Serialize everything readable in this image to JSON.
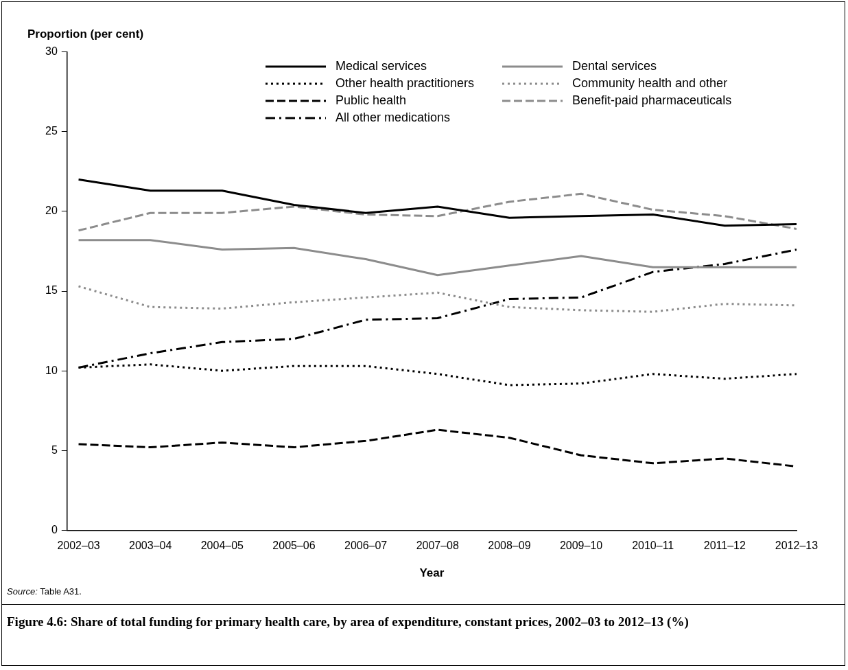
{
  "chart_data": {
    "type": "line",
    "title": "Figure 4.6: Share of total funding for primary health care, by area of expenditure, constant prices, 2002–03 to 2012–13 (%)",
    "ylabel": "Proportion (per cent)",
    "xlabel": "Year",
    "annotations": [
      "Source: Table A31."
    ],
    "categories": [
      "2002–03",
      "2003–04",
      "2004–05",
      "2005–06",
      "2006–07",
      "2007–08",
      "2008–09",
      "2009–10",
      "2010–11",
      "2011–12",
      "2012–13"
    ],
    "ylim": [
      0,
      30
    ],
    "yticks": [
      0,
      5,
      10,
      15,
      20,
      25,
      30
    ],
    "grid": false,
    "legend": "top",
    "marker": "none",
    "series": [
      {
        "name": "Medical services",
        "color": "#000000",
        "line_style": "solid",
        "values": [
          22.0,
          21.3,
          21.3,
          20.4,
          19.9,
          20.3,
          19.6,
          19.7,
          19.8,
          19.1,
          19.2
        ]
      },
      {
        "name": "Dental services",
        "color": "#8c8c8c",
        "line_style": "solid",
        "values": [
          18.2,
          18.2,
          17.6,
          17.7,
          17.0,
          16.0,
          16.6,
          17.2,
          16.5,
          16.5,
          16.5
        ]
      },
      {
        "name": "Other health practitioners",
        "color": "#000000",
        "line_style": "dotted",
        "values": [
          10.2,
          10.4,
          10.0,
          10.3,
          10.3,
          9.8,
          9.1,
          9.2,
          9.8,
          9.5,
          9.8
        ]
      },
      {
        "name": "Community health and other",
        "color": "#8c8c8c",
        "line_style": "dotted",
        "values": [
          15.3,
          14.0,
          13.9,
          14.3,
          14.6,
          14.9,
          14.0,
          13.8,
          13.7,
          14.2,
          14.1
        ]
      },
      {
        "name": "Public health",
        "color": "#000000",
        "line_style": "dashed",
        "values": [
          5.4,
          5.2,
          5.5,
          5.2,
          5.6,
          6.3,
          5.8,
          4.7,
          4.2,
          4.5,
          4.0
        ]
      },
      {
        "name": "Benefit-paid pharmaceuticals",
        "color": "#8c8c8c",
        "line_style": "dashed",
        "values": [
          18.8,
          19.9,
          19.9,
          20.3,
          19.8,
          19.7,
          20.6,
          21.1,
          20.1,
          19.7,
          18.9
        ]
      },
      {
        "name": "All other medications",
        "color": "#000000",
        "line_style": "dashdot",
        "values": [
          10.2,
          11.1,
          11.8,
          12.0,
          13.2,
          13.3,
          14.5,
          14.6,
          16.2,
          16.7,
          17.6
        ]
      }
    ]
  }
}
